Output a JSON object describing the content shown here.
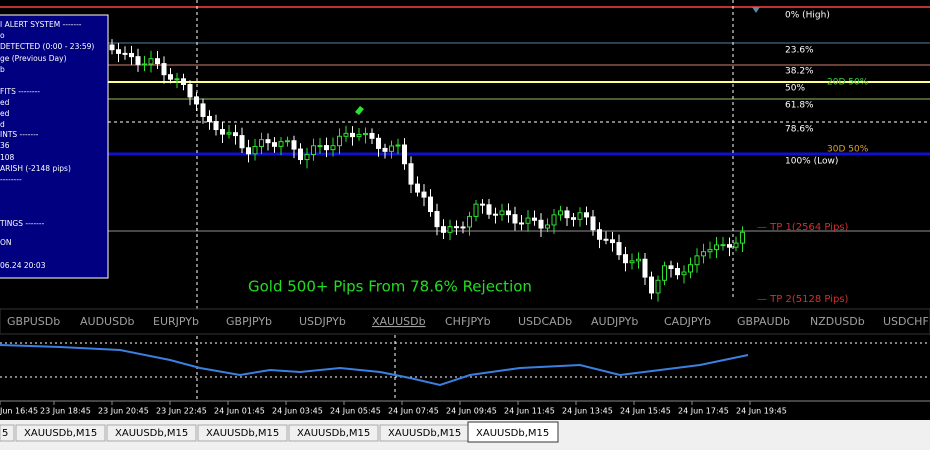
{
  "panel": {
    "lines": [
      "I ALERT SYSTEM -------",
      "o",
      "DETECTED (0:00 - 23:59)",
      "ge (Previous Day)",
      "b",
      "FITS --------",
      "ed",
      "ed",
      "d",
      "INTS -------",
      "36",
      "108",
      "ARISH (-2148 pips)",
      "--------",
      "TINGS -------",
      "ON",
      "06.24 20:03"
    ]
  },
  "fib_levels": [
    "0% (High)",
    "23.6%",
    "38.2%",
    "50%",
    "61.8%",
    "78.6%",
    "100% (Low)"
  ],
  "overlays": {
    "d20": "20D 50%",
    "d30": "30D 50%",
    "tp1": "— TP 1(2564 Pips)",
    "tp2": "— TP 2(5128 Pips)"
  },
  "annotation": "Gold 500+ Pips From 78.6% Rejection",
  "symbols": [
    "GBPUSDb",
    "AUDUSDb",
    "EURJPYb",
    "GBPJPYb",
    "USDJPYb",
    "XAUUSDb",
    "CHFJPYb",
    "USDCADb",
    "AUDJPYb",
    "CADJPYb",
    "GBPAUDb",
    "NZDUSDb",
    "USDCHF"
  ],
  "time_labels": [
    "Jun 16:45",
    "23 Jun 18:45",
    "23 Jun 20:45",
    "23 Jun 22:45",
    "24 Jun 01:45",
    "24 Jun 03:45",
    "24 Jun 05:45",
    "24 Jun 07:45",
    "24 Jun 09:45",
    "24 Jun 11:45",
    "24 Jun 13:45",
    "24 Jun 15:45",
    "24 Jun 17:45",
    "24 Jun 19:45"
  ],
  "tabs": [
    "5",
    "XAUUSDb,M15",
    "XAUUSDb,M15",
    "XAUUSDb,M15",
    "XAUUSDb,M15",
    "XAUUSDb,M15",
    "XAUUSDb,M15"
  ]
}
